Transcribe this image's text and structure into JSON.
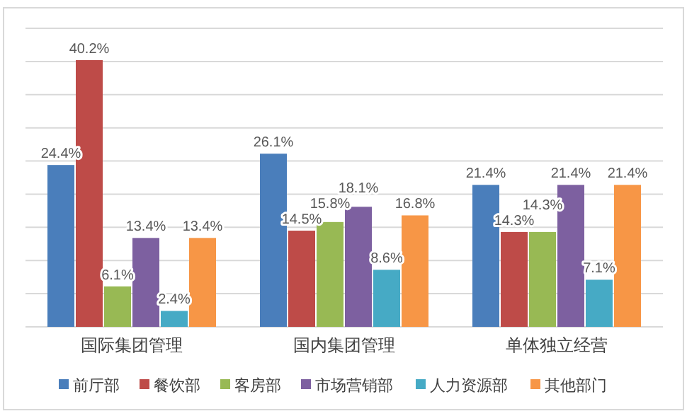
{
  "chart_data": {
    "type": "bar",
    "categories": [
      "国际集团管理",
      "国内集团管理",
      "单体独立经营"
    ],
    "series": [
      {
        "name": "前厅部",
        "color": "#4a7ebb",
        "values": [
          24.4,
          26.1,
          21.4
        ],
        "value_labels": [
          "24.4%",
          "26.1%",
          "21.4%"
        ]
      },
      {
        "name": "餐饮部",
        "color": "#be4b48",
        "values": [
          40.2,
          14.5,
          14.3
        ],
        "value_labels": [
          "40.2%",
          "14.5%",
          "14.3%"
        ]
      },
      {
        "name": "客房部",
        "color": "#98b954",
        "values": [
          6.1,
          15.8,
          14.3
        ],
        "value_labels": [
          "6.1%",
          "15.8%",
          "14.3%"
        ]
      },
      {
        "name": "市场营销部",
        "color": "#7d60a0",
        "values": [
          13.4,
          18.1,
          21.4
        ],
        "value_labels": [
          "13.4%",
          "18.1%",
          "21.4%"
        ]
      },
      {
        "name": "人力资源部",
        "color": "#46aac5",
        "values": [
          2.4,
          8.6,
          7.1
        ],
        "value_labels": [
          "2.4%",
          "8.6%",
          "7.1%"
        ]
      },
      {
        "name": "其他部门",
        "color": "#f79646",
        "values": [
          13.4,
          16.8,
          21.4
        ],
        "value_labels": [
          "13.4%",
          "16.8%",
          "21.4%"
        ]
      }
    ],
    "ylim": [
      0,
      45
    ],
    "yticks": [
      {
        "value": 0,
        "label": null
      },
      {
        "value": 5,
        "label": null
      },
      {
        "value": 10,
        "label": null
      },
      {
        "value": 15,
        "label": null
      },
      {
        "value": 20,
        "label": null
      },
      {
        "value": 25,
        "label": null
      },
      {
        "value": 30,
        "label": null
      },
      {
        "value": 35,
        "label": null
      },
      {
        "value": 40,
        "label": null
      },
      {
        "value": 45,
        "label": null
      }
    ],
    "grid": "y",
    "legend": "bottom",
    "tick_labels": "x"
  }
}
